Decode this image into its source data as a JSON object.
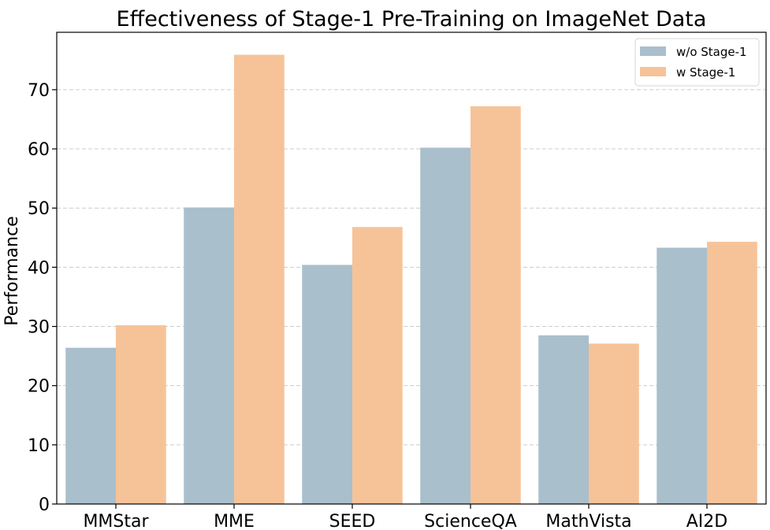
{
  "chart_data": {
    "type": "bar",
    "title": "Effectiveness of Stage-1 Pre-Training on ImageNet Data",
    "xlabel": "",
    "ylabel": "Performance",
    "categories": [
      "MMStar",
      "MME",
      "SEED",
      "ScienceQA",
      "MathVista",
      "AI2D"
    ],
    "series": [
      {
        "name": "w/o Stage-1",
        "color": "#a9bfcb",
        "values": [
          26.4,
          50.1,
          40.4,
          60.2,
          28.5,
          43.3
        ]
      },
      {
        "name": "w Stage-1",
        "color": "#f6c399",
        "values": [
          30.2,
          75.9,
          46.8,
          67.2,
          27.1,
          44.3
        ]
      }
    ],
    "ylim": [
      0,
      79.7
    ],
    "yticks": [
      0,
      10,
      20,
      30,
      40,
      50,
      60,
      70
    ],
    "grid": "y-dashed",
    "legend_position": "top-right"
  }
}
